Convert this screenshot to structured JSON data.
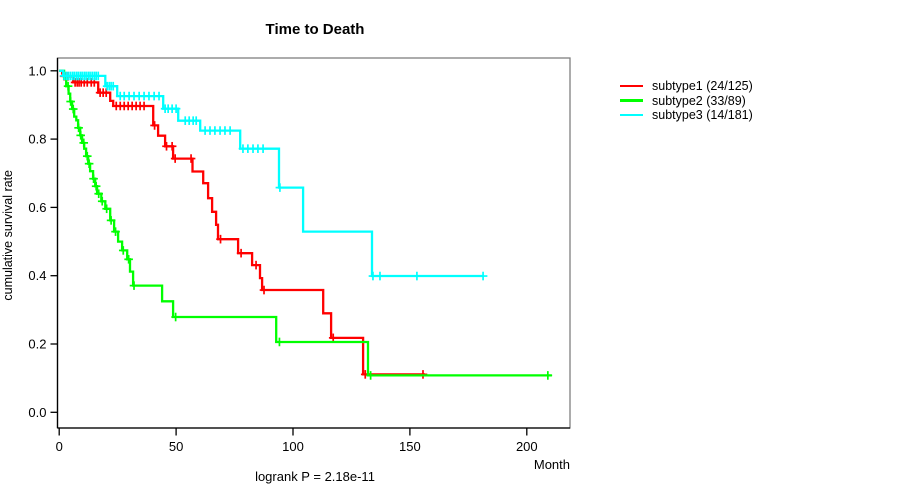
{
  "chart_data": {
    "type": "line",
    "subtype": "kaplan-meier-step",
    "title": "Time to Death",
    "xlabel": "Month",
    "ylabel": "cumulative survival rate",
    "annotation": "logrank P = 2.18e-11",
    "xlim": [
      0,
      218
    ],
    "ylim": [
      0,
      1
    ],
    "xticks": [
      "0",
      "50",
      "100",
      "150",
      "200"
    ],
    "yticks": [
      "0.0",
      "0.2",
      "0.4",
      "0.6",
      "0.8",
      "1.0"
    ],
    "grid": false,
    "legend_position": "right-outside",
    "border_color": "#808080",
    "axis_color": "#000000",
    "series": [
      {
        "id": "subtype1",
        "name": "subtype1 (24/125)",
        "color": "#ff0000",
        "steps": [
          [
            1.3,
            0.992
          ],
          [
            2.1,
            0.984
          ],
          [
            6.0,
            0.966
          ],
          [
            16.7,
            0.936
          ],
          [
            21.8,
            0.912
          ],
          [
            23.1,
            0.897
          ],
          [
            40.2,
            0.84
          ],
          [
            42.3,
            0.81
          ],
          [
            45.3,
            0.779
          ],
          [
            48.7,
            0.743
          ],
          [
            57.0,
            0.705
          ],
          [
            61.6,
            0.671
          ],
          [
            63.7,
            0.627
          ],
          [
            65.4,
            0.587
          ],
          [
            67.1,
            0.549
          ],
          [
            67.9,
            0.507
          ],
          [
            76.5,
            0.466
          ],
          [
            82.5,
            0.431
          ],
          [
            85.9,
            0.393
          ],
          [
            86.8,
            0.358
          ],
          [
            112.9,
            0.29
          ],
          [
            116.3,
            0.218
          ],
          [
            130.0,
            0.111
          ]
        ],
        "end_month": 156.5,
        "censors": [
          [
            2.1,
            0.984
          ],
          [
            3.0,
            0.984
          ],
          [
            3.8,
            0.984
          ],
          [
            6.8,
            0.966
          ],
          [
            7.7,
            0.966
          ],
          [
            8.5,
            0.966
          ],
          [
            9.4,
            0.966
          ],
          [
            10.7,
            0.966
          ],
          [
            12.0,
            0.966
          ],
          [
            13.7,
            0.966
          ],
          [
            15.0,
            0.966
          ],
          [
            17.5,
            0.936
          ],
          [
            18.8,
            0.936
          ],
          [
            20.1,
            0.936
          ],
          [
            24.4,
            0.897
          ],
          [
            26.1,
            0.897
          ],
          [
            27.8,
            0.897
          ],
          [
            29.5,
            0.897
          ],
          [
            31.2,
            0.897
          ],
          [
            32.9,
            0.897
          ],
          [
            34.6,
            0.897
          ],
          [
            36.3,
            0.897
          ],
          [
            40.8,
            0.84
          ],
          [
            45.9,
            0.779
          ],
          [
            48.3,
            0.779
          ],
          [
            49.6,
            0.743
          ],
          [
            56.4,
            0.743
          ],
          [
            69.0,
            0.507
          ],
          [
            77.8,
            0.466
          ],
          [
            84.2,
            0.431
          ],
          [
            87.6,
            0.358
          ],
          [
            117.2,
            0.218
          ],
          [
            130.9,
            0.111
          ],
          [
            155.6,
            0.111
          ]
        ]
      },
      {
        "id": "subtype2",
        "name": "subtype2 (33/89)",
        "color": "#00ff00",
        "steps": [
          [
            2.1,
            0.977
          ],
          [
            3.0,
            0.955
          ],
          [
            4.0,
            0.933
          ],
          [
            4.7,
            0.91
          ],
          [
            5.5,
            0.888
          ],
          [
            6.4,
            0.866
          ],
          [
            7.3,
            0.855
          ],
          [
            8.1,
            0.833
          ],
          [
            9.0,
            0.811
          ],
          [
            9.8,
            0.789
          ],
          [
            10.7,
            0.772
          ],
          [
            11.5,
            0.75
          ],
          [
            12.4,
            0.728
          ],
          [
            13.2,
            0.706
          ],
          [
            14.5,
            0.684
          ],
          [
            15.4,
            0.662
          ],
          [
            16.2,
            0.64
          ],
          [
            18.0,
            0.618
          ],
          [
            19.7,
            0.596
          ],
          [
            21.8,
            0.562
          ],
          [
            23.5,
            0.529
          ],
          [
            25.2,
            0.5
          ],
          [
            26.9,
            0.474
          ],
          [
            29.1,
            0.448
          ],
          [
            30.3,
            0.412
          ],
          [
            31.6,
            0.371
          ],
          [
            44.0,
            0.325
          ],
          [
            48.7,
            0.279
          ],
          [
            92.8,
            0.206
          ],
          [
            132.1,
            0.108
          ]
        ],
        "end_month": 210.7,
        "censors": [
          [
            3.8,
            0.955
          ],
          [
            4.9,
            0.91
          ],
          [
            6.0,
            0.888
          ],
          [
            8.3,
            0.833
          ],
          [
            9.2,
            0.811
          ],
          [
            10.5,
            0.789
          ],
          [
            12.0,
            0.75
          ],
          [
            12.8,
            0.728
          ],
          [
            14.7,
            0.684
          ],
          [
            15.8,
            0.662
          ],
          [
            16.9,
            0.64
          ],
          [
            18.4,
            0.618
          ],
          [
            20.3,
            0.596
          ],
          [
            22.2,
            0.562
          ],
          [
            24.1,
            0.529
          ],
          [
            27.4,
            0.474
          ],
          [
            29.7,
            0.448
          ],
          [
            32.0,
            0.371
          ],
          [
            49.8,
            0.279
          ],
          [
            94.2,
            0.206
          ],
          [
            133.2,
            0.108
          ],
          [
            209.0,
            0.108
          ]
        ]
      },
      {
        "id": "subtype3",
        "name": "subtype3 (14/181)",
        "color": "#00ffff",
        "steps": [
          [
            1.7,
            0.985
          ],
          [
            19.7,
            0.955
          ],
          [
            24.8,
            0.926
          ],
          [
            44.5,
            0.889
          ],
          [
            50.9,
            0.854
          ],
          [
            60.3,
            0.825
          ],
          [
            77.4,
            0.772
          ],
          [
            94.0,
            0.658
          ],
          [
            104.3,
            0.529
          ],
          [
            133.8,
            0.399
          ]
        ],
        "end_month": 181.6,
        "censors": [
          [
            2.1,
            0.985
          ],
          [
            3.0,
            0.985
          ],
          [
            3.8,
            0.985
          ],
          [
            4.7,
            0.985
          ],
          [
            5.6,
            0.985
          ],
          [
            6.4,
            0.985
          ],
          [
            7.3,
            0.985
          ],
          [
            8.1,
            0.985
          ],
          [
            9.0,
            0.985
          ],
          [
            9.8,
            0.985
          ],
          [
            10.7,
            0.985
          ],
          [
            11.5,
            0.985
          ],
          [
            12.4,
            0.985
          ],
          [
            13.2,
            0.985
          ],
          [
            14.1,
            0.985
          ],
          [
            15.0,
            0.985
          ],
          [
            15.8,
            0.985
          ],
          [
            16.7,
            0.985
          ],
          [
            20.5,
            0.955
          ],
          [
            21.4,
            0.955
          ],
          [
            22.2,
            0.955
          ],
          [
            23.1,
            0.955
          ],
          [
            26.1,
            0.926
          ],
          [
            27.8,
            0.926
          ],
          [
            29.9,
            0.926
          ],
          [
            32.0,
            0.926
          ],
          [
            34.2,
            0.926
          ],
          [
            36.3,
            0.926
          ],
          [
            38.4,
            0.926
          ],
          [
            40.6,
            0.926
          ],
          [
            42.7,
            0.926
          ],
          [
            45.3,
            0.889
          ],
          [
            46.6,
            0.889
          ],
          [
            48.3,
            0.889
          ],
          [
            50.0,
            0.889
          ],
          [
            53.9,
            0.854
          ],
          [
            55.6,
            0.854
          ],
          [
            57.3,
            0.854
          ],
          [
            58.6,
            0.854
          ],
          [
            62.4,
            0.825
          ],
          [
            64.5,
            0.825
          ],
          [
            66.6,
            0.825
          ],
          [
            68.8,
            0.825
          ],
          [
            70.9,
            0.825
          ],
          [
            73.1,
            0.825
          ],
          [
            78.6,
            0.772
          ],
          [
            80.7,
            0.772
          ],
          [
            82.9,
            0.772
          ],
          [
            85.0,
            0.772
          ],
          [
            87.2,
            0.772
          ],
          [
            94.4,
            0.658
          ],
          [
            134.2,
            0.399
          ],
          [
            137.2,
            0.399
          ],
          [
            153.0,
            0.399
          ],
          [
            181.3,
            0.399
          ]
        ]
      }
    ]
  }
}
